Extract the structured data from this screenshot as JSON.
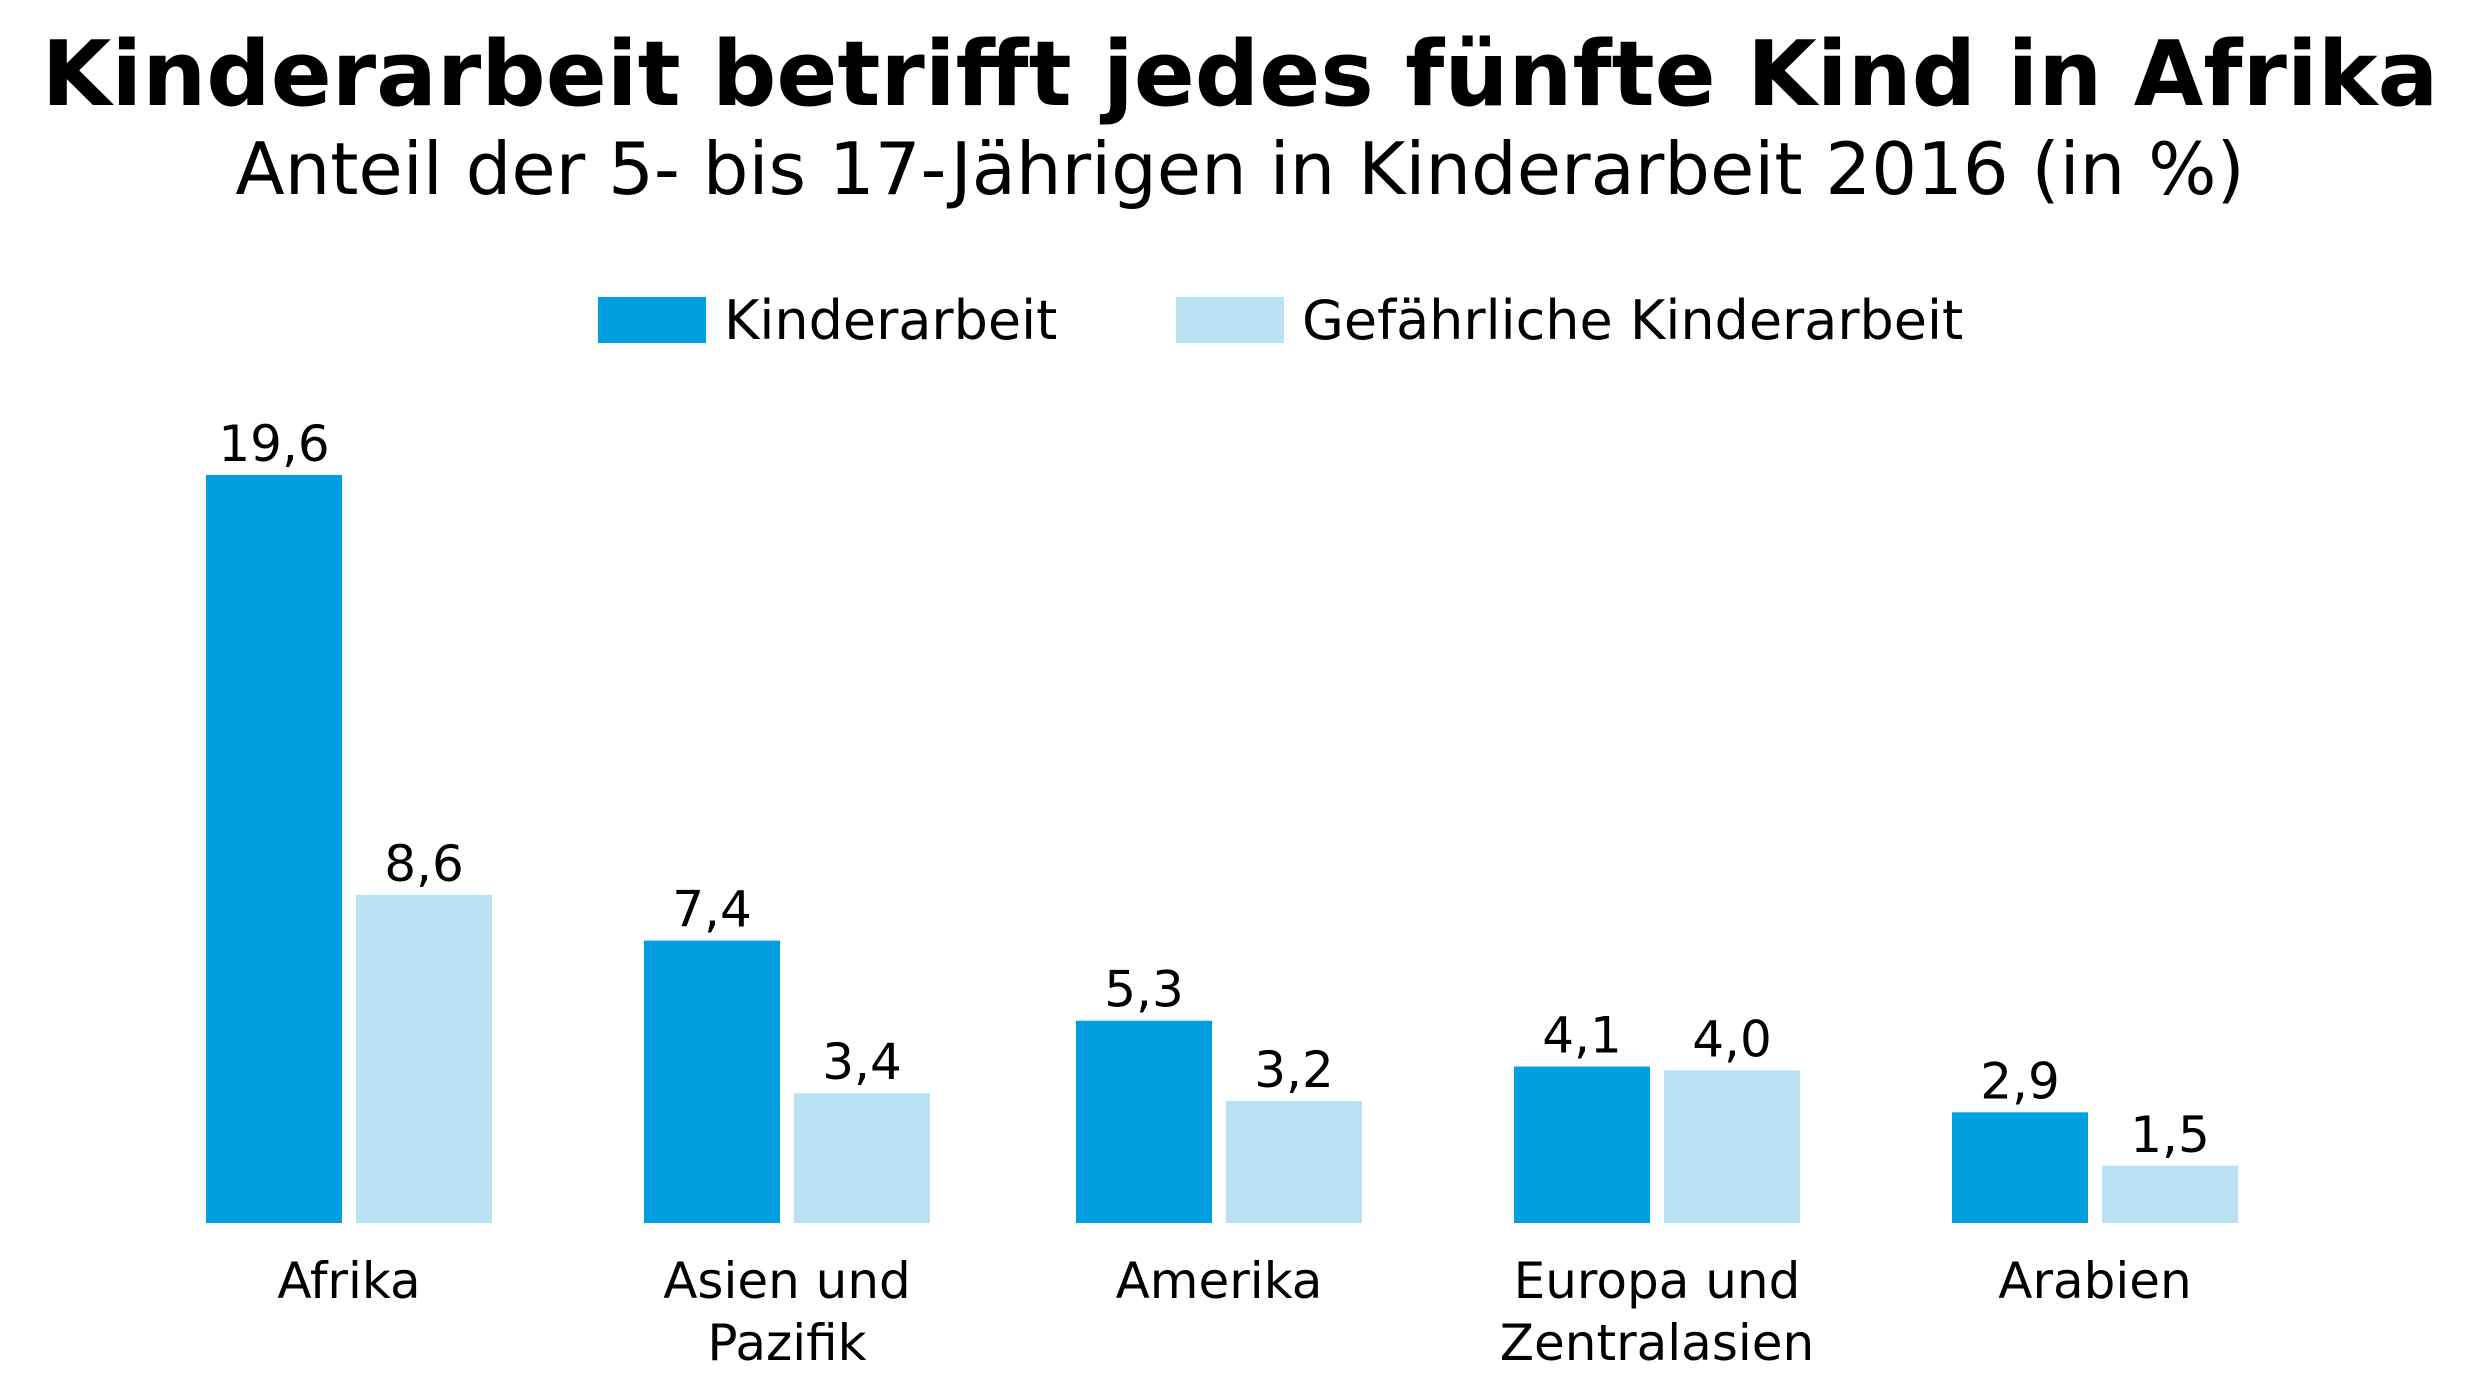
{
  "chart_data": {
    "type": "bar",
    "title": "Kinderarbeit betrifft jedes fünfte Kind in Afrika",
    "subtitle": "Anteil der 5- bis 17-Jährigen in Kinderarbeit 2016 (in %)",
    "categories": [
      [
        "Afrika"
      ],
      [
        "Asien und",
        "Pazifik"
      ],
      [
        "Amerika"
      ],
      [
        "Europa und",
        "Zentralasien"
      ],
      [
        "Arabien"
      ]
    ],
    "series": [
      {
        "name": "Kinderarbeit",
        "color": "#009fdf",
        "values": [
          19.6,
          7.4,
          5.3,
          4.1,
          2.9
        ],
        "labels": [
          "19,6",
          "7,4",
          "5,3",
          "4,1",
          "2,9"
        ]
      },
      {
        "name": "Gefährliche Kinderarbeit",
        "color": "#b8e1f2",
        "values": [
          8.6,
          3.4,
          3.2,
          4.0,
          1.5
        ],
        "labels": [
          "8,6",
          "3,4",
          "3,2",
          "4,0",
          "1,5"
        ]
      }
    ],
    "ylim": [
      0,
      19.6
    ],
    "grid": false,
    "legend": "top-center"
  }
}
